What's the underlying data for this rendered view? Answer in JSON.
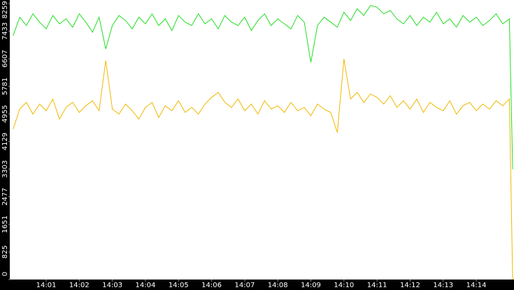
{
  "chart_data": {
    "type": "line",
    "x": [
      840.0,
      840.2,
      840.4,
      840.6,
      840.8,
      841.0,
      841.2,
      841.4,
      841.6,
      841.8,
      842.0,
      842.2,
      842.4,
      842.6,
      842.8,
      843.0,
      843.2,
      843.4,
      843.6,
      843.8,
      844.0,
      844.2,
      844.4,
      844.6,
      844.8,
      845.0,
      845.2,
      845.4,
      845.6,
      845.8,
      846.0,
      846.2,
      846.4,
      846.6,
      846.8,
      847.0,
      847.2,
      847.4,
      847.6,
      847.8,
      848.0,
      848.2,
      848.4,
      848.6,
      848.8,
      849.0,
      849.2,
      849.4,
      849.6,
      849.8,
      850.0,
      850.2,
      850.4,
      850.6,
      850.8,
      851.0,
      851.2,
      851.4,
      851.6,
      851.8,
      852.0,
      852.2,
      852.4,
      852.6,
      852.8,
      853.0,
      853.2,
      853.4,
      853.6,
      853.8,
      854.0,
      854.2,
      854.4,
      854.6,
      854.8,
      855.0,
      855.1
    ],
    "series": [
      {
        "color": "#22dd22",
        "values": [
          7300,
          7850,
          7600,
          7950,
          7700,
          7500,
          7900,
          7650,
          7800,
          7550,
          7950,
          7700,
          7400,
          7850,
          6900,
          7600,
          7900,
          7750,
          7500,
          7850,
          7650,
          7950,
          7600,
          7800,
          7450,
          7900,
          7700,
          7600,
          7950,
          7650,
          7800,
          7500,
          7900,
          7700,
          7600,
          7850,
          7450,
          7750,
          7950,
          7600,
          7800,
          7650,
          7500,
          7900,
          7700,
          6500,
          7600,
          7850,
          7700,
          7550,
          8000,
          7750,
          8100,
          7900,
          8200,
          8150,
          7950,
          8050,
          7800,
          7650,
          7900,
          7600,
          7850,
          7700,
          8000,
          7650,
          7800,
          7550,
          7900,
          7700,
          7850,
          7600,
          7750,
          7950,
          7650,
          7800,
          3300
        ]
      },
      {
        "color": "#f0b800",
        "values": [
          4500,
          5100,
          5300,
          4950,
          5250,
          5050,
          5400,
          4800,
          5150,
          5300,
          5000,
          5200,
          5350,
          5050,
          6550,
          5100,
          4950,
          5250,
          5050,
          4800,
          5150,
          5300,
          4850,
          5200,
          5050,
          5350,
          5000,
          5150,
          4950,
          5250,
          5450,
          5600,
          5300,
          5150,
          5400,
          5050,
          5250,
          4950,
          5350,
          5100,
          5200,
          5000,
          5300,
          5050,
          5150,
          4900,
          5250,
          5100,
          5000,
          4400,
          6600,
          5400,
          5600,
          5300,
          5550,
          5450,
          5250,
          5500,
          5150,
          5350,
          5100,
          5400,
          5000,
          5300,
          5150,
          5050,
          5350,
          4950,
          5200,
          5300,
          5050,
          5250,
          5100,
          5350,
          5200,
          5400,
          0
        ]
      }
    ],
    "xlim": [
      839.9,
      855.14
    ],
    "xticks": [
      {
        "value": 841,
        "label": "14:01"
      },
      {
        "value": 842,
        "label": "14:02"
      },
      {
        "value": 843,
        "label": "14:03"
      },
      {
        "value": 844,
        "label": "14:04"
      },
      {
        "value": 845,
        "label": "14:05"
      },
      {
        "value": 846,
        "label": "14:06"
      },
      {
        "value": 847,
        "label": "14:07"
      },
      {
        "value": 848,
        "label": "14:08"
      },
      {
        "value": 849,
        "label": "14:09"
      },
      {
        "value": 850,
        "label": "14:10"
      },
      {
        "value": 851,
        "label": "14:11"
      },
      {
        "value": 852,
        "label": "14:12"
      },
      {
        "value": 853,
        "label": "14:13"
      },
      {
        "value": 854,
        "label": "14:14"
      }
    ],
    "ylim": [
      0,
      8259
    ],
    "yticks": [
      0,
      825,
      1651,
      2477,
      3303,
      4129,
      4955,
      5781,
      6607,
      7433,
      8259
    ]
  }
}
